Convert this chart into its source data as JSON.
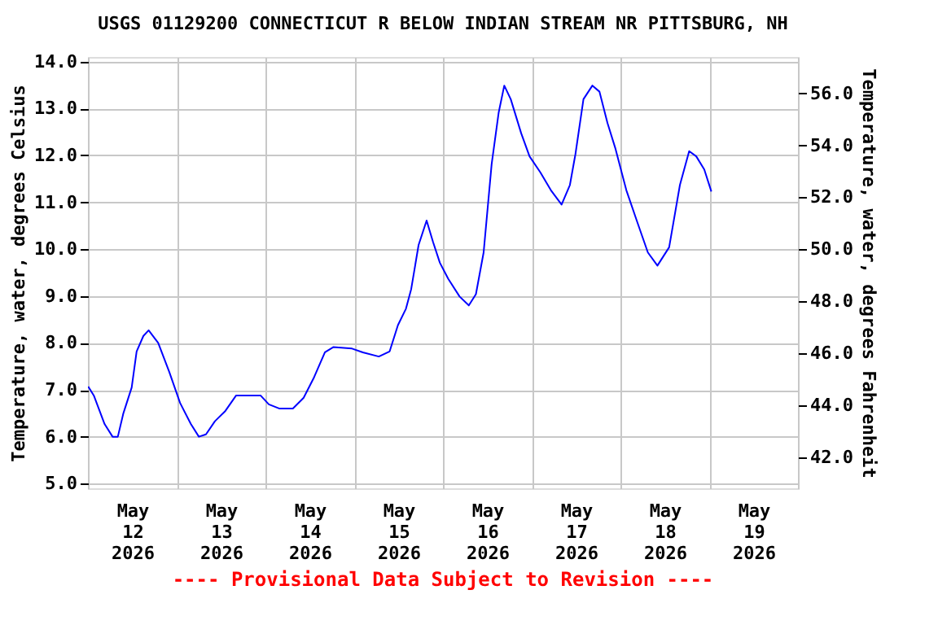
{
  "chart_data": {
    "type": "line",
    "title": "USGS 01129200 CONNECTICUT R BELOW INDIAN STREAM NR PITTSBURG, NH",
    "ylabel": "Temperature, water, degrees Celsius",
    "y2label": "Temperature, water, degrees Fahrenheit",
    "annotations": [
      "---- Provisional Data Subject to Revision ----"
    ],
    "x": [
      "2026-05-12T00:05",
      "2026-05-12T01:35",
      "2026-05-12T04:30",
      "2026-05-12T06:40",
      "2026-05-12T08:05",
      "2026-05-12T09:35",
      "2026-05-12T11:50",
      "2026-05-12T13:10",
      "2026-05-12T15:00",
      "2026-05-12T16:25",
      "2026-05-12T19:00",
      "2026-05-12T22:00",
      "2026-05-13T00:55",
      "2026-05-13T03:50",
      "2026-05-13T06:00",
      "2026-05-13T07:55",
      "2026-05-13T10:20",
      "2026-05-13T13:10",
      "2026-05-13T16:05",
      "2026-05-13T22:40",
      "2026-05-14T00:55",
      "2026-05-14T03:50",
      "2026-05-14T07:25",
      "2026-05-14T10:20",
      "2026-05-14T13:10",
      "2026-05-14T16:05",
      "2026-05-14T18:20",
      "2026-05-14T23:25",
      "2026-05-15T02:20",
      "2026-05-15T06:40",
      "2026-05-15T09:35",
      "2026-05-15T11:50",
      "2026-05-15T14:00",
      "2026-05-15T15:25",
      "2026-05-15T17:25",
      "2026-05-15T19:35",
      "2026-05-15T21:20",
      "2026-05-15T23:10",
      "2026-05-16T01:25",
      "2026-05-16T04:30",
      "2026-05-16T07:00",
      "2026-05-16T08:55",
      "2026-05-16T11:00",
      "2026-05-16T13:10",
      "2026-05-16T15:05",
      "2026-05-16T16:35",
      "2026-05-16T18:20",
      "2026-05-16T21:10",
      "2026-05-16T23:25",
      "2026-05-17T02:20",
      "2026-05-17T05:10",
      "2026-05-17T08:05",
      "2026-05-17T10:20",
      "2026-05-17T11:50",
      "2026-05-17T14:00",
      "2026-05-17T16:25",
      "2026-05-17T18:20",
      "2026-05-17T20:30",
      "2026-05-17T22:40",
      "2026-05-18T01:35",
      "2026-05-18T04:30",
      "2026-05-18T07:25",
      "2026-05-18T10:00",
      "2026-05-18T13:10",
      "2026-05-18T16:05",
      "2026-05-18T18:35",
      "2026-05-18T20:30",
      "2026-05-18T22:40",
      "2026-05-19T00:35"
    ],
    "series": [
      {
        "color": "#0000ff",
        "values": [
          7.07,
          6.88,
          6.27,
          6.0,
          6.0,
          6.5,
          7.05,
          7.82,
          8.15,
          8.27,
          8.0,
          7.38,
          6.72,
          6.27,
          6.0,
          6.05,
          6.33,
          6.55,
          6.88,
          6.88,
          6.69,
          6.6,
          6.6,
          6.83,
          7.27,
          7.8,
          7.91,
          7.88,
          7.8,
          7.71,
          7.82,
          8.38,
          8.73,
          9.15,
          10.09,
          10.61,
          10.15,
          9.71,
          9.37,
          8.99,
          8.8,
          9.04,
          9.93,
          11.81,
          12.92,
          13.49,
          13.2,
          12.47,
          11.98,
          11.64,
          11.26,
          10.95,
          11.37,
          12.03,
          13.2,
          13.49,
          13.36,
          12.69,
          12.14,
          11.26,
          10.59,
          9.93,
          9.65,
          10.04,
          11.37,
          12.09,
          11.98,
          11.7,
          11.23
        ]
      }
    ],
    "xlim": [
      "2026-05-12T00:00",
      "2026-05-20T00:00"
    ],
    "xticks": [
      {
        "value": "2026-05-12T00:00",
        "label": null
      },
      {
        "value": "2026-05-12T12:00",
        "label": "May 12 2026"
      },
      {
        "value": "2026-05-13T00:00",
        "label": null
      },
      {
        "value": "2026-05-13T12:00",
        "label": "May 13 2026"
      },
      {
        "value": "2026-05-14T00:00",
        "label": null
      },
      {
        "value": "2026-05-14T12:00",
        "label": "May 14 2026"
      },
      {
        "value": "2026-05-15T00:00",
        "label": null
      },
      {
        "value": "2026-05-15T12:00",
        "label": "May 15 2026"
      },
      {
        "value": "2026-05-16T00:00",
        "label": null
      },
      {
        "value": "2026-05-16T12:00",
        "label": "May 16 2026"
      },
      {
        "value": "2026-05-17T00:00",
        "label": null
      },
      {
        "value": "2026-05-17T12:00",
        "label": "May 17 2026"
      },
      {
        "value": "2026-05-18T00:00",
        "label": null
      },
      {
        "value": "2026-05-18T12:00",
        "label": "May 18 2026"
      },
      {
        "value": "2026-05-19T00:00",
        "label": null
      },
      {
        "value": "2026-05-19T12:00",
        "label": "May 19 2026"
      },
      {
        "value": "2026-05-20T00:00",
        "label": null
      }
    ],
    "ylim": [
      4.9,
      14.1
    ],
    "yticks": [
      {
        "value": 5,
        "label": "5.0"
      },
      {
        "value": 6,
        "label": "6.0"
      },
      {
        "value": 7,
        "label": "7.0"
      },
      {
        "value": 8,
        "label": "8.0"
      },
      {
        "value": 9,
        "label": "9.0"
      },
      {
        "value": 10,
        "label": "10.0"
      },
      {
        "value": 11,
        "label": "11.0"
      },
      {
        "value": 12,
        "label": "12.0"
      },
      {
        "value": 13,
        "label": "13.0"
      },
      {
        "value": 14,
        "label": "14.0"
      }
    ],
    "y2lim": [
      40.8,
      57.4
    ],
    "y2ticks": [
      {
        "value": 42,
        "label": "42.0"
      },
      {
        "value": 44,
        "label": "44.0"
      },
      {
        "value": 46,
        "label": "46.0"
      },
      {
        "value": 48,
        "label": "48.0"
      },
      {
        "value": 50,
        "label": "50.0"
      },
      {
        "value": 52,
        "label": "52.0"
      },
      {
        "value": 54,
        "label": "54.0"
      },
      {
        "value": 56,
        "label": "56.0"
      }
    ],
    "grid": true,
    "legend": false,
    "line_style": "solid",
    "marker": "none"
  }
}
